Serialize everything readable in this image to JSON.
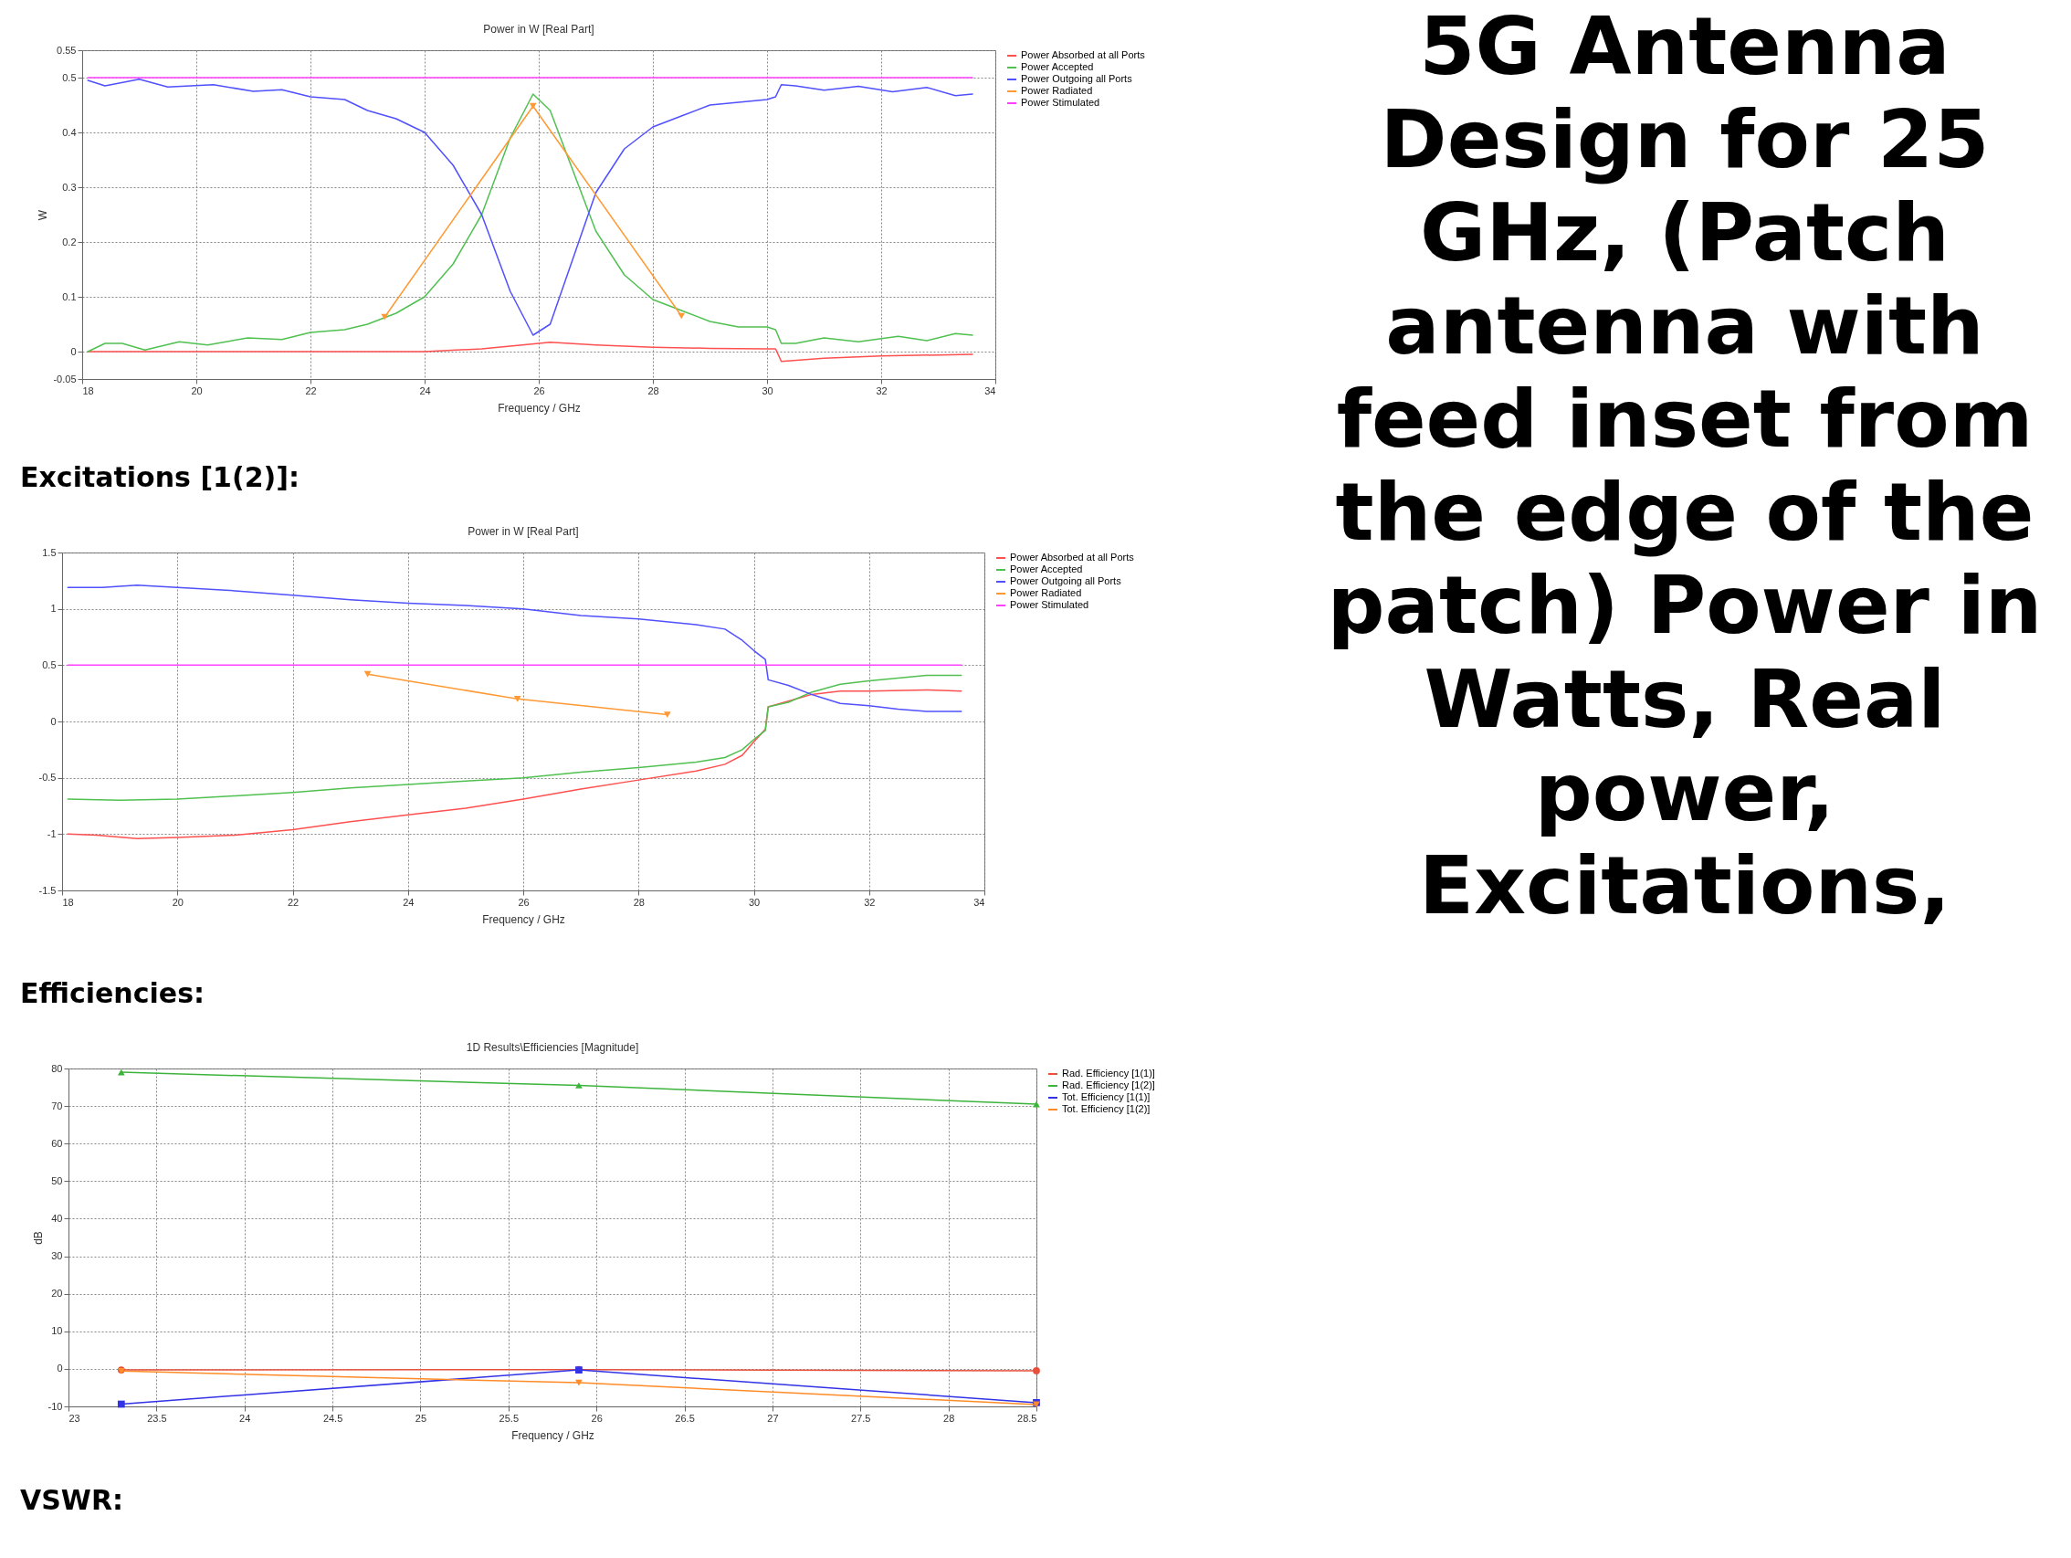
{
  "chart_data": [
    {
      "type": "line",
      "title": "Power in W [Real Part]",
      "xlabel": "Frequency / GHz",
      "ylabel": "W",
      "xlim": [
        18,
        34
      ],
      "xticks": [
        18,
        20,
        22,
        24,
        26,
        28,
        30,
        32,
        34
      ],
      "ylim": [
        -0.05,
        0.55
      ],
      "yticks": [
        -0.05,
        0,
        0.1,
        0.2,
        0.3,
        0.4,
        0.5,
        0.55
      ],
      "grid": true,
      "legend": "right",
      "line_style": "solid",
      "annotations": [
        "5G Antenna Design for 25 GHz, (Patch antenna with feed inset from the edge of the patch) Power in Watts, Real power, Excitations,"
      ],
      "series": [
        {
          "name": "Power Absorbed at all Ports",
          "color": "#ff5050",
          "x": [
            18.1,
            20,
            22,
            24,
            25,
            26,
            26.2,
            27,
            28,
            29,
            30,
            30.15,
            30.25,
            31,
            32,
            33.6
          ],
          "values": [
            0,
            0,
            0,
            0,
            0.005,
            0.015,
            0.017,
            0.012,
            0.008,
            0.006,
            0.005,
            0.005,
            -0.018,
            -0.012,
            -0.008,
            -0.005
          ]
        },
        {
          "name": "Power Accepted",
          "color": "#50c050",
          "x": [
            18.1,
            18.4,
            18.7,
            19.1,
            19.7,
            20.2,
            20.9,
            21.5,
            22,
            22.6,
            23,
            23.5,
            24,
            24.5,
            25,
            25.5,
            25.9,
            26.2,
            26.6,
            27,
            27.5,
            28,
            28.5,
            29,
            29.5,
            30,
            30.15,
            30.25,
            30.5,
            31,
            31.6,
            32.3,
            32.8,
            33.3,
            33.6
          ],
          "values": [
            0,
            0.015,
            0.015,
            0.003,
            0.018,
            0.012,
            0.025,
            0.022,
            0.035,
            0.04,
            0.05,
            0.07,
            0.1,
            0.16,
            0.25,
            0.39,
            0.47,
            0.44,
            0.33,
            0.22,
            0.14,
            0.095,
            0.075,
            0.055,
            0.045,
            0.045,
            0.04,
            0.015,
            0.015,
            0.025,
            0.018,
            0.028,
            0.02,
            0.033,
            0.03
          ]
        },
        {
          "name": "Power Outgoing all Ports",
          "color": "#5050ff",
          "x": [
            18.1,
            18.4,
            19,
            19.5,
            20.3,
            21,
            21.5,
            22,
            22.6,
            23,
            23.5,
            24,
            24.5,
            25,
            25.5,
            25.9,
            26.2,
            26.6,
            27,
            27.5,
            28,
            28.5,
            29,
            29.5,
            30,
            30.15,
            30.25,
            30.5,
            31,
            31.6,
            32.2,
            32.8,
            33.3,
            33.6
          ],
          "values": [
            0.495,
            0.485,
            0.497,
            0.483,
            0.487,
            0.475,
            0.478,
            0.465,
            0.46,
            0.44,
            0.425,
            0.4,
            0.34,
            0.25,
            0.11,
            0.03,
            0.05,
            0.17,
            0.29,
            0.37,
            0.41,
            0.43,
            0.45,
            0.455,
            0.46,
            0.465,
            0.487,
            0.485,
            0.477,
            0.484,
            0.474,
            0.482,
            0.467,
            0.47
          ]
        },
        {
          "name": "Power Radiated",
          "color": "#ff9933",
          "marker": "triangle-down",
          "x": [
            23.3,
            25.9,
            28.5
          ],
          "values": [
            0.063,
            0.448,
            0.065
          ]
        },
        {
          "name": "Power Stimulated",
          "color": "#ff40ff",
          "x": [
            18.1,
            33.6
          ],
          "values": [
            0.5,
            0.5
          ]
        }
      ]
    },
    {
      "type": "line",
      "title": "Power in W [Real Part]",
      "xlabel": "Frequency / GHz",
      "xlim": [
        18,
        34
      ],
      "xticks": [
        18,
        20,
        22,
        24,
        26,
        28,
        30,
        32,
        34
      ],
      "ylim": [
        -1.5,
        1.5
      ],
      "yticks": [
        -1.5,
        -1,
        -0.5,
        0,
        0.5,
        1,
        1.5
      ],
      "grid": true,
      "legend": "right",
      "line_style": "solid",
      "annotations": [
        "Excitations [1(2)]:"
      ],
      "series": [
        {
          "name": "Power Absorbed at all Ports",
          "color": "#ff5050",
          "x": [
            18.1,
            18.6,
            19.3,
            20,
            21,
            22,
            23,
            24,
            25,
            26,
            27,
            28,
            29,
            29.5,
            29.8,
            30,
            30.2,
            30.25,
            30.6,
            31,
            31.5,
            32,
            33,
            33.6
          ],
          "values": [
            -1,
            -1.01,
            -1.04,
            -1.03,
            -1.01,
            -0.96,
            -0.89,
            -0.83,
            -0.77,
            -0.69,
            -0.6,
            -0.52,
            -0.44,
            -0.38,
            -0.3,
            -0.18,
            -0.07,
            0.13,
            0.18,
            0.24,
            0.27,
            0.27,
            0.28,
            0.27
          ]
        },
        {
          "name": "Power Accepted",
          "color": "#50c050",
          "x": [
            18.1,
            19,
            20,
            21,
            22,
            23,
            24,
            25,
            26,
            27,
            28,
            29,
            29.5,
            29.8,
            30,
            30.2,
            30.25,
            30.6,
            31,
            31.5,
            32,
            33,
            33.6
          ],
          "values": [
            -0.69,
            -0.7,
            -0.69,
            -0.66,
            -0.63,
            -0.59,
            -0.56,
            -0.53,
            -0.5,
            -0.45,
            -0.41,
            -0.36,
            -0.32,
            -0.25,
            -0.16,
            -0.08,
            0.13,
            0.17,
            0.26,
            0.33,
            0.36,
            0.41,
            0.41
          ]
        },
        {
          "name": "Power Outgoing all Ports",
          "color": "#5050ff",
          "x": [
            18.1,
            18.7,
            19.3,
            20,
            21,
            22,
            23,
            24,
            25,
            26,
            27,
            28,
            29,
            29.5,
            29.8,
            30,
            30.2,
            30.25,
            30.6,
            31,
            31.5,
            32,
            32.5,
            33,
            33.6
          ],
          "values": [
            1.19,
            1.19,
            1.21,
            1.19,
            1.16,
            1.12,
            1.08,
            1.05,
            1.03,
            1,
            0.94,
            0.91,
            0.86,
            0.82,
            0.72,
            0.63,
            0.55,
            0.37,
            0.32,
            0.24,
            0.16,
            0.14,
            0.11,
            0.09,
            0.09
          ]
        },
        {
          "name": "Power Radiated",
          "color": "#ff9933",
          "marker": "triangle-down",
          "x": [
            23.3,
            25.9,
            28.5
          ],
          "values": [
            0.42,
            0.2,
            0.06
          ]
        },
        {
          "name": "Power Stimulated",
          "color": "#ff40ff",
          "x": [
            18.1,
            33.6
          ],
          "values": [
            0.5,
            0.5
          ]
        }
      ]
    },
    {
      "type": "line",
      "title": "1D Results\\Efficiencies [Magnitude]",
      "xlabel": "Frequency / GHz",
      "ylabel": "dB",
      "x": [
        23.3,
        25.9,
        28.5
      ],
      "xlim": [
        23,
        28.5
      ],
      "xticks": [
        23,
        23.5,
        24,
        24.5,
        25,
        25.5,
        26,
        26.5,
        27,
        27.5,
        28,
        28.5
      ],
      "ylim": [
        -10,
        80
      ],
      "yticks": [
        -10,
        0,
        10,
        20,
        30,
        40,
        50,
        60,
        70,
        80
      ],
      "grid": true,
      "legend": "right",
      "line_style": "solid",
      "annotations": [
        "Efficiencies:",
        "VSWR:"
      ],
      "series": [
        {
          "name": "Rad. Efficiency [1(1)]",
          "color": "#e8503c",
          "marker": "circle",
          "values": [
            -0.3,
            -0.2,
            -0.5
          ]
        },
        {
          "name": "Rad. Efficiency [1(2)]",
          "color": "#3cb43c",
          "marker": "triangle",
          "values": [
            79,
            75.5,
            70.5
          ]
        },
        {
          "name": "Tot. Efficiency [1(1)]",
          "color": "#3232e6",
          "marker": "square",
          "values": [
            -9.4,
            -0.3,
            -9
          ]
        },
        {
          "name": "Tot. Efficiency [1(2)]",
          "color": "#ff8c28",
          "marker": "triangle-down",
          "values": [
            -0.6,
            -3.7,
            -9.5
          ]
        }
      ]
    }
  ]
}
